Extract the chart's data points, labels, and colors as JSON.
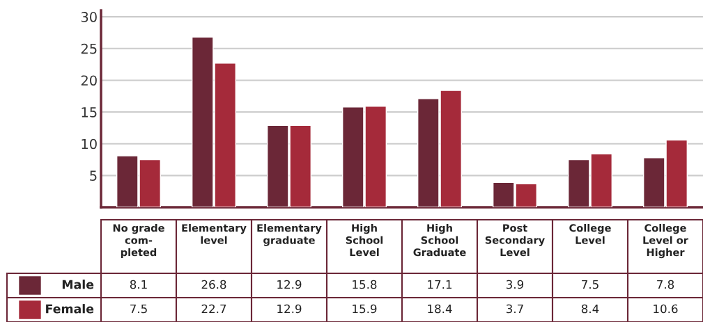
{
  "chart_data": {
    "type": "bar",
    "categories": [
      "No grade com- pleted",
      "Elementary level",
      "Elementary graduate",
      "High School Level",
      "High School Graduate",
      "Post Secondary Level",
      "College Level",
      "College Level or Higher"
    ],
    "series": [
      {
        "name": "Male",
        "color": "#6b2737",
        "values": [
          8.1,
          26.8,
          12.9,
          15.8,
          17.1,
          3.9,
          7.5,
          7.8
        ]
      },
      {
        "name": "Female",
        "color": "#a52a3a",
        "values": [
          7.5,
          22.7,
          12.9,
          15.9,
          18.4,
          3.7,
          8.4,
          10.6
        ]
      }
    ],
    "ylim": [
      0,
      31
    ],
    "yticks": [
      5,
      10,
      15,
      20,
      25,
      30
    ],
    "grid": "y",
    "tick_labels": "y",
    "data_labels": true,
    "legend": "bottom"
  }
}
